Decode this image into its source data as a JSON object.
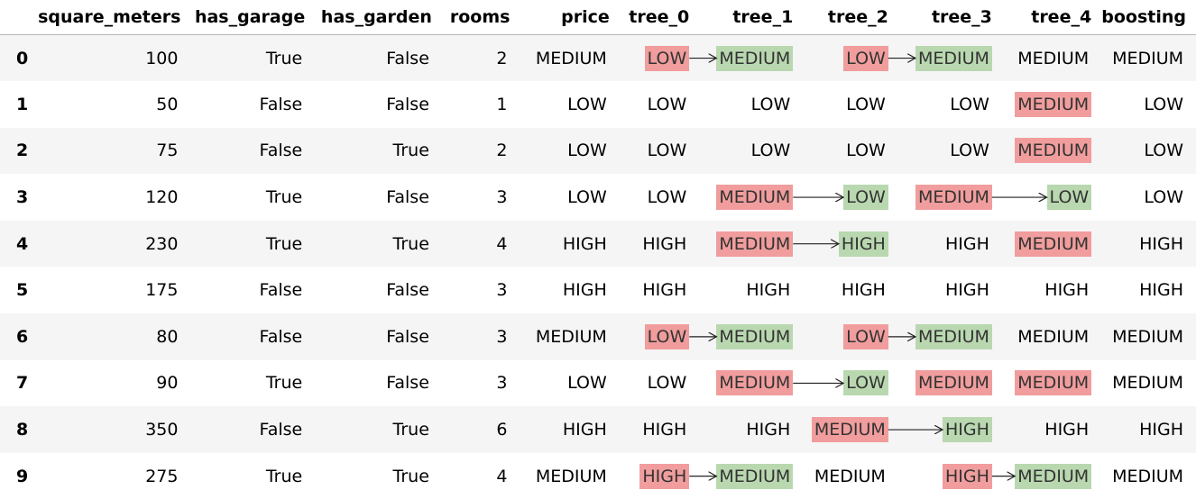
{
  "table": {
    "index_header": "",
    "columns": [
      "square_meters",
      "has_garage",
      "has_garden",
      "rooms",
      "price",
      "tree_0",
      "tree_1",
      "tree_2",
      "tree_3",
      "tree_4",
      "boosting"
    ],
    "rows": [
      {
        "index": "0",
        "cells": [
          "100",
          "True",
          "False",
          "2",
          "MEDIUM",
          "LOW",
          "MEDIUM",
          "LOW",
          "MEDIUM",
          "MEDIUM",
          "MEDIUM"
        ],
        "highlights": [
          "",
          "",
          "",
          "",
          "",
          "red",
          "green",
          "red",
          "green",
          "",
          ""
        ]
      },
      {
        "index": "1",
        "cells": [
          "50",
          "False",
          "False",
          "1",
          "LOW",
          "LOW",
          "LOW",
          "LOW",
          "LOW",
          "MEDIUM",
          "LOW"
        ],
        "highlights": [
          "",
          "",
          "",
          "",
          "",
          "",
          "",
          "",
          "",
          "red",
          ""
        ]
      },
      {
        "index": "2",
        "cells": [
          "75",
          "False",
          "True",
          "2",
          "LOW",
          "LOW",
          "LOW",
          "LOW",
          "LOW",
          "MEDIUM",
          "LOW"
        ],
        "highlights": [
          "",
          "",
          "",
          "",
          "",
          "",
          "",
          "",
          "",
          "red",
          ""
        ]
      },
      {
        "index": "3",
        "cells": [
          "120",
          "True",
          "False",
          "3",
          "LOW",
          "LOW",
          "MEDIUM",
          "LOW",
          "MEDIUM",
          "LOW",
          "LOW"
        ],
        "highlights": [
          "",
          "",
          "",
          "",
          "",
          "",
          "red",
          "green",
          "red",
          "green",
          ""
        ]
      },
      {
        "index": "4",
        "cells": [
          "230",
          "True",
          "True",
          "4",
          "HIGH",
          "HIGH",
          "MEDIUM",
          "HIGH",
          "HIGH",
          "MEDIUM",
          "HIGH"
        ],
        "highlights": [
          "",
          "",
          "",
          "",
          "",
          "",
          "red",
          "green",
          "",
          "red",
          ""
        ]
      },
      {
        "index": "5",
        "cells": [
          "175",
          "False",
          "False",
          "3",
          "HIGH",
          "HIGH",
          "HIGH",
          "HIGH",
          "HIGH",
          "HIGH",
          "HIGH"
        ],
        "highlights": [
          "",
          "",
          "",
          "",
          "",
          "",
          "",
          "",
          "",
          "",
          ""
        ]
      },
      {
        "index": "6",
        "cells": [
          "80",
          "False",
          "False",
          "3",
          "MEDIUM",
          "LOW",
          "MEDIUM",
          "LOW",
          "MEDIUM",
          "MEDIUM",
          "MEDIUM"
        ],
        "highlights": [
          "",
          "",
          "",
          "",
          "",
          "red",
          "green",
          "red",
          "green",
          "",
          ""
        ]
      },
      {
        "index": "7",
        "cells": [
          "90",
          "True",
          "False",
          "3",
          "LOW",
          "LOW",
          "MEDIUM",
          "LOW",
          "MEDIUM",
          "MEDIUM",
          "MEDIUM"
        ],
        "highlights": [
          "",
          "",
          "",
          "",
          "",
          "",
          "red",
          "green",
          "red",
          "red",
          ""
        ]
      },
      {
        "index": "8",
        "cells": [
          "350",
          "False",
          "True",
          "6",
          "HIGH",
          "HIGH",
          "HIGH",
          "MEDIUM",
          "HIGH",
          "HIGH",
          "HIGH"
        ],
        "highlights": [
          "",
          "",
          "",
          "",
          "",
          "",
          "",
          "red",
          "green",
          "",
          ""
        ]
      },
      {
        "index": "9",
        "cells": [
          "275",
          "True",
          "True",
          "4",
          "MEDIUM",
          "HIGH",
          "MEDIUM",
          "MEDIUM",
          "HIGH",
          "MEDIUM",
          "MEDIUM"
        ],
        "highlights": [
          "",
          "",
          "",
          "",
          "",
          "red",
          "green",
          "",
          "red",
          "green",
          ""
        ]
      }
    ],
    "arrows": [
      {
        "row": 0,
        "from": "tree_0",
        "to": "tree_1"
      },
      {
        "row": 0,
        "from": "tree_2",
        "to": "tree_3"
      },
      {
        "row": 3,
        "from": "tree_1",
        "to": "tree_2"
      },
      {
        "row": 3,
        "from": "tree_3",
        "to": "tree_4"
      },
      {
        "row": 4,
        "from": "tree_1",
        "to": "tree_2"
      },
      {
        "row": 6,
        "from": "tree_0",
        "to": "tree_1"
      },
      {
        "row": 6,
        "from": "tree_2",
        "to": "tree_3"
      },
      {
        "row": 7,
        "from": "tree_1",
        "to": "tree_2"
      },
      {
        "row": 8,
        "from": "tree_2",
        "to": "tree_3"
      },
      {
        "row": 9,
        "from": "tree_0",
        "to": "tree_1"
      },
      {
        "row": 9,
        "from": "tree_3",
        "to": "tree_4"
      }
    ],
    "colors": {
      "wrong": "#f19d9d",
      "corrected": "#b9d8b0",
      "stripe": "#f5f5f5"
    }
  }
}
